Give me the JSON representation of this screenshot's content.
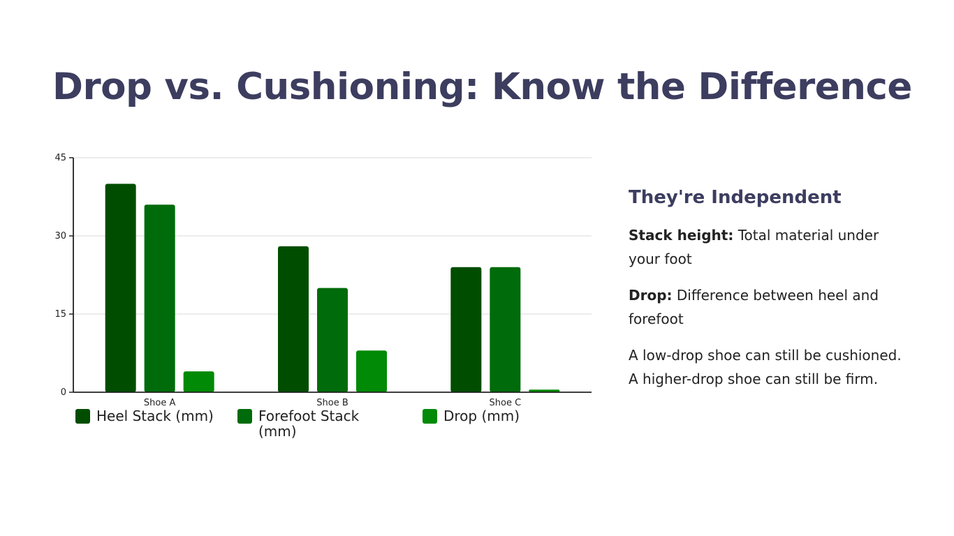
{
  "slide": {
    "title": "Drop vs. Cushioning: Know the Difference"
  },
  "side_panel": {
    "heading": "They're Independent",
    "stack_term": "Stack height:",
    "stack_text": " Total material under your foot",
    "drop_term": "Drop:",
    "drop_text": " Difference between heel and forefoot",
    "note": "A low-drop shoe can still be cushioned. A higher-drop shoe can still be firm."
  },
  "chart_data": {
    "type": "bar",
    "title": "",
    "xlabel": "",
    "ylabel": "",
    "categories": [
      "Shoe A",
      "Shoe B",
      "Shoe C"
    ],
    "series": [
      {
        "name": "Heel Stack (mm)",
        "values": [
          40,
          28,
          24
        ],
        "color": "#004d00"
      },
      {
        "name": "Forefoot Stack (mm)",
        "values": [
          36,
          20,
          24
        ],
        "color": "#006b0a"
      },
      {
        "name": "Drop (mm)",
        "values": [
          4,
          8,
          0.5
        ],
        "color": "#008a05"
      }
    ],
    "ylim": [
      0,
      45
    ],
    "yticks": [
      "0",
      "15",
      "30",
      "45"
    ],
    "grid": true,
    "legend": "bottom"
  }
}
